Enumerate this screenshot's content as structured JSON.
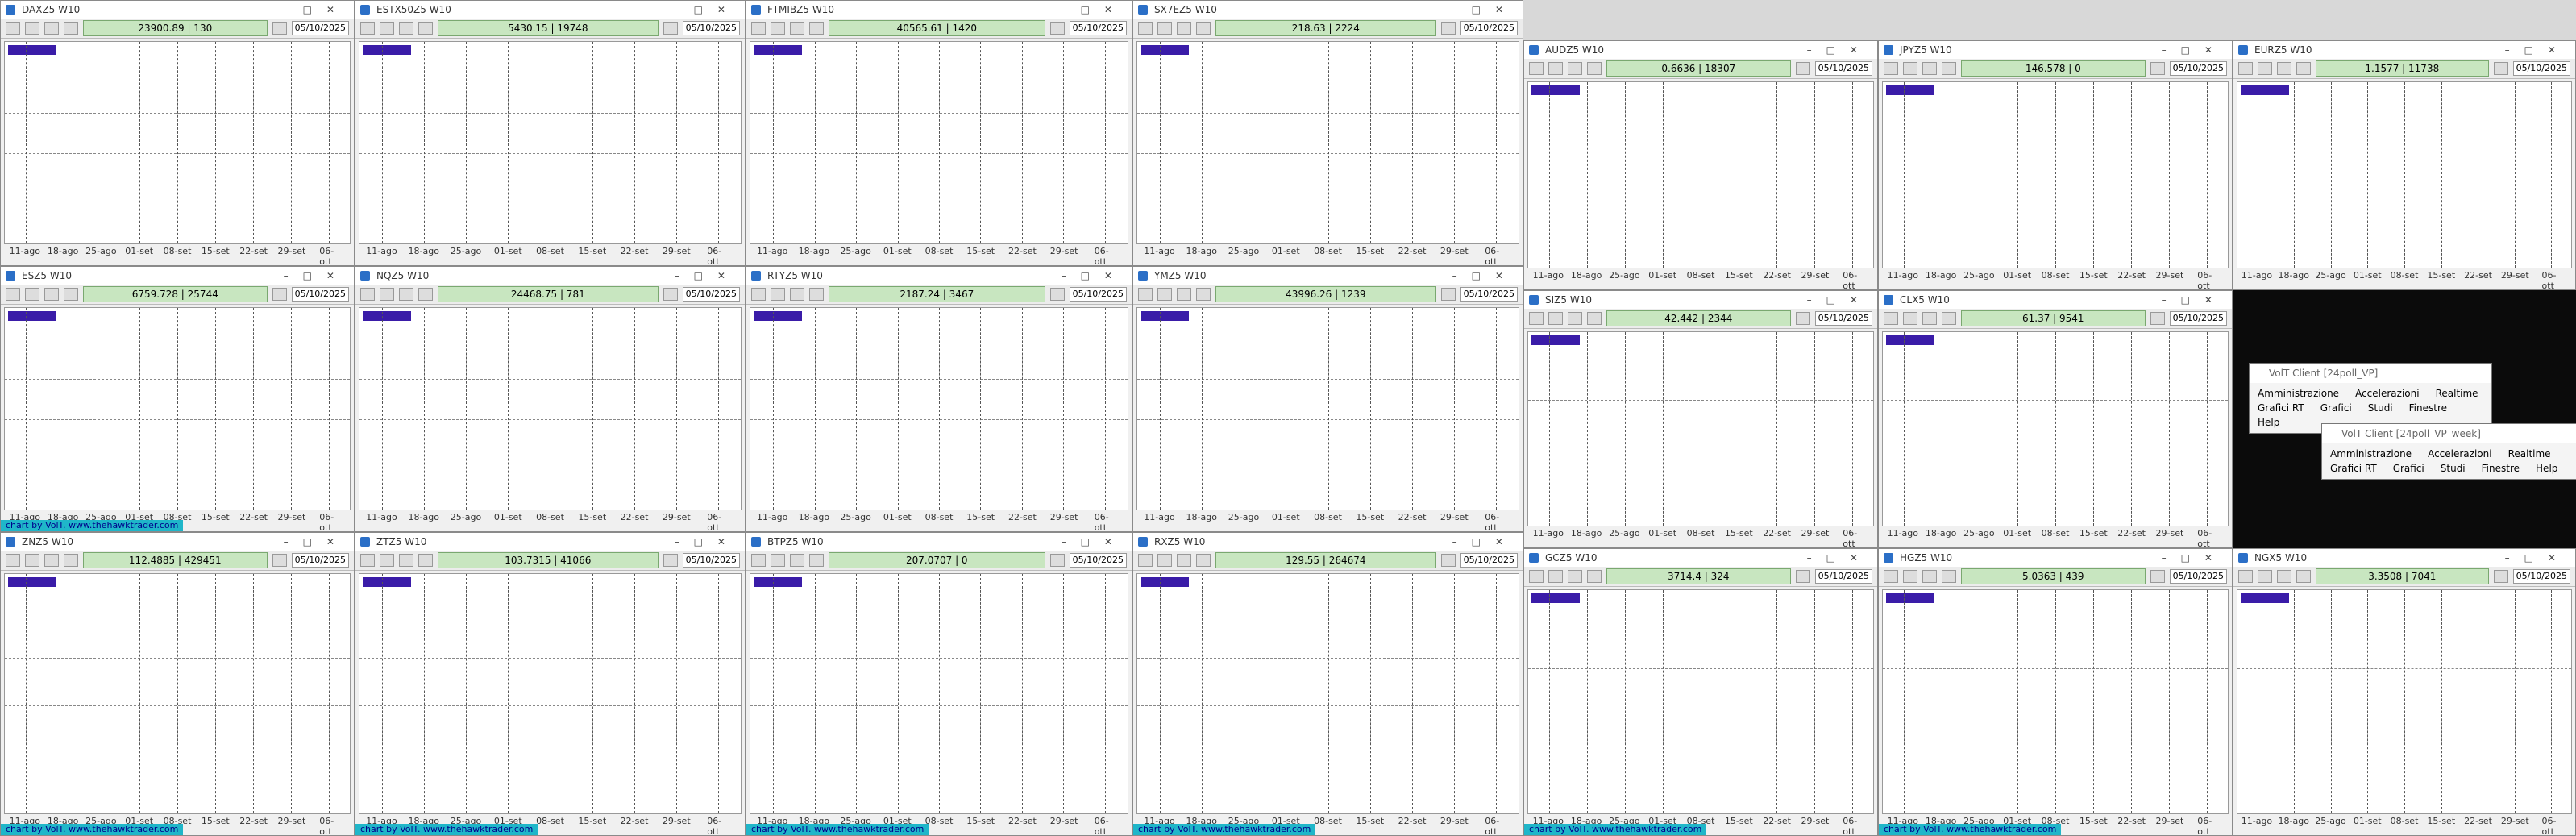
{
  "windows": [
    {
      "title": "DAXZ5 W10",
      "quote": "23900.89 | 130",
      "date": "05/10/2025"
    },
    {
      "title": "ESTX50Z5 W10",
      "quote": "5430.15 | 19748",
      "date": "05/10/2025"
    },
    {
      "title": "FTMIBZ5 W10",
      "quote": "40565.61 | 1420",
      "date": "05/10/2025"
    },
    {
      "title": "SX7EZ5 W10",
      "quote": "218.63 | 2224",
      "date": "05/10/2025"
    },
    {
      "title": "ESZ5 W10",
      "quote": "6759.728 | 25744",
      "date": "05/10/2025",
      "footer": "chart by VolT. www.thehawktrader.com"
    },
    {
      "title": "NQZ5 W10",
      "quote": "24468.75 | 781",
      "date": "05/10/2025"
    },
    {
      "title": "RTYZ5 W10",
      "quote": "2187.24 | 3467",
      "date": "05/10/2025"
    },
    {
      "title": "YMZ5 W10",
      "quote": "43996.26 | 1239",
      "date": "05/10/2025"
    },
    {
      "title": "ZNZ5 W10",
      "quote": "112.4885 | 429451",
      "date": "05/10/2025",
      "footer": "chart by VolT. www.thehawktrader.com"
    },
    {
      "title": "ZTZ5 W10",
      "quote": "103.7315 | 41066",
      "date": "05/10/2025",
      "footer": "chart by VolT. www.thehawktrader.com"
    },
    {
      "title": "BTPZ5 W10",
      "quote": "207.0707 | 0",
      "date": "05/10/2025",
      "footer": "chart by VolT. www.thehawktrader.com"
    },
    {
      "title": "RXZ5 W10",
      "quote": "129.55 | 264674",
      "date": "05/10/2025",
      "footer": "chart by VolT. www.thehawktrader.com"
    },
    {
      "title": "AUDZ5 W10",
      "quote": "0.6636 | 18307",
      "date": "05/10/2025"
    },
    {
      "title": "JPYZ5 W10",
      "quote": "146.578 | 0",
      "date": "05/10/2025"
    },
    {
      "title": "EURZ5 W10",
      "quote": "1.1577 | 11738",
      "date": "05/10/2025"
    },
    {
      "title": "SIZ5 W10",
      "quote": "42.442 | 2344",
      "date": "05/10/2025"
    },
    {
      "title": "CLX5 W10",
      "quote": "61.37 | 9541",
      "date": "05/10/2025"
    },
    {
      "title": "GCZ5 W10",
      "quote": "3714.4 | 324",
      "date": "05/10/2025",
      "footer": "chart by VolT. www.thehawktrader.com"
    },
    {
      "title": "HGZ5 W10",
      "quote": "5.0363 | 439",
      "date": "05/10/2025",
      "footer": "chart by VolT. www.thehawktrader.com"
    },
    {
      "title": "NGX5 W10",
      "quote": "3.3508 | 7041",
      "date": "05/10/2025"
    }
  ],
  "dates": [
    "11-ago",
    "18-ago",
    "25-ago",
    "01-set",
    "08-set",
    "15-set",
    "22-set",
    "29-set",
    "06-ott"
  ],
  "dialogs": [
    {
      "title": "VolT Client [24poll_VP]",
      "menu": [
        "Amministrazione",
        "Accelerazioni",
        "Realtime",
        "Grafici RT",
        "Grafici",
        "Studi",
        "Finestre",
        "Help"
      ]
    },
    {
      "title": "VolT Client [24poll_VP_week]",
      "menu": [
        "Amministrazione",
        "Accelerazioni",
        "Realtime",
        "Grafici RT",
        "Grafici",
        "Studi",
        "Finestre",
        "Help"
      ]
    }
  ]
}
